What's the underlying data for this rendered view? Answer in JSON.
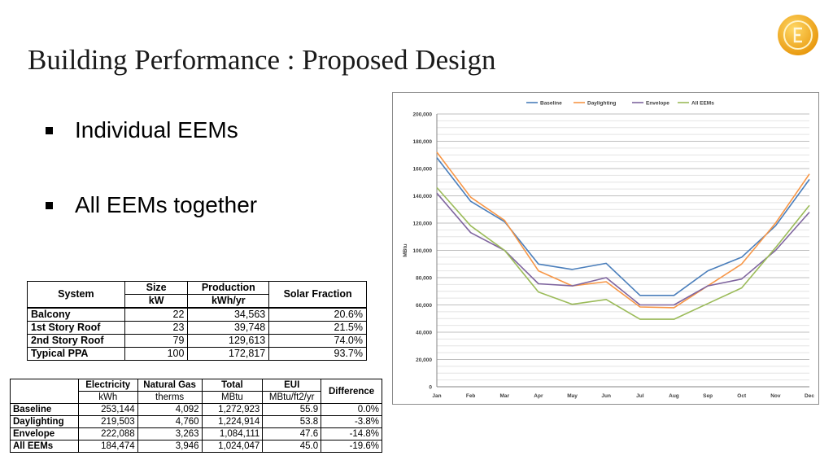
{
  "slide": {
    "title": "Building Performance : Proposed Design",
    "bullets": [
      "Individual EEMs",
      "All EEMs together"
    ],
    "logo_icon": "coin-e-logo"
  },
  "solar_table": {
    "headers": {
      "system": "System",
      "size": "Size",
      "size_unit": "kW",
      "production": "Production",
      "production_unit": "kWh/yr",
      "solar_fraction": "Solar Fraction"
    },
    "rows": [
      {
        "system": "Balcony",
        "size": "22",
        "production": "34,563",
        "fraction": "20.6%"
      },
      {
        "system": "1st Story Roof",
        "size": "23",
        "production": "39,748",
        "fraction": "21.5%"
      },
      {
        "system": "2nd Story Roof",
        "size": "79",
        "production": "129,613",
        "fraction": "74.0%"
      },
      {
        "system": "Typical PPA",
        "size": "100",
        "production": "172,817",
        "fraction": "93.7%"
      }
    ]
  },
  "energy_table": {
    "headers": {
      "electricity": "Electricity",
      "electricity_unit": "kWh",
      "gas": "Natural Gas",
      "gas_unit": "therms",
      "total": "Total",
      "total_unit": "MBtu",
      "eui": "EUI",
      "eui_unit": "MBtu/ft2/yr",
      "difference": "Difference"
    },
    "rows": [
      {
        "name": "Baseline",
        "electricity": "253,144",
        "gas": "4,092",
        "total": "1,272,923",
        "eui": "55.9",
        "difference": "0.0%"
      },
      {
        "name": "Daylighting",
        "electricity": "219,503",
        "gas": "4,760",
        "total": "1,224,914",
        "eui": "53.8",
        "difference": "-3.8%"
      },
      {
        "name": "Envelope",
        "electricity": "222,088",
        "gas": "3,263",
        "total": "1,084,111",
        "eui": "47.6",
        "difference": "-14.8%"
      },
      {
        "name": "All EEMs",
        "electricity": "184,474",
        "gas": "3,946",
        "total": "1,024,047",
        "eui": "45.0",
        "difference": "-19.6%"
      }
    ]
  },
  "chart_data": {
    "type": "line",
    "title": "",
    "xlabel": "",
    "ylabel": "MBtu",
    "categories": [
      "Jan",
      "Feb",
      "Mar",
      "Apr",
      "May",
      "Jun",
      "Jul",
      "Aug",
      "Sep",
      "Oct",
      "Nov",
      "Dec"
    ],
    "ylim": [
      0,
      200000
    ],
    "yticks": [
      0,
      20000,
      40000,
      60000,
      80000,
      100000,
      120000,
      140000,
      160000,
      180000,
      200000
    ],
    "ytick_labels": [
      "0",
      "20,000",
      "40,000",
      "60,000",
      "80,000",
      "100,000",
      "120,000",
      "140,000",
      "160,000",
      "180,000",
      "200,000"
    ],
    "grid": true,
    "legend_position": "top",
    "series": [
      {
        "name": "Baseline",
        "color": "#4a7ebb",
        "values": [
          168000,
          136000,
          121000,
          90000,
          86000,
          90500,
          67000,
          67000,
          85000,
          95000,
          118000,
          152000
        ]
      },
      {
        "name": "Daylighting",
        "color": "#f79646",
        "values": [
          172000,
          139000,
          122000,
          85000,
          74000,
          77000,
          58500,
          58000,
          74000,
          90000,
          120000,
          156000
        ]
      },
      {
        "name": "Envelope",
        "color": "#7f659f",
        "values": [
          142000,
          113000,
          100000,
          75500,
          74000,
          80000,
          60000,
          60000,
          74000,
          79000,
          100000,
          128000
        ]
      },
      {
        "name": "All EEMs",
        "color": "#9bbb59",
        "values": [
          146000,
          118000,
          100000,
          69500,
          60500,
          64000,
          49500,
          49500,
          61000,
          72500,
          102000,
          133000
        ]
      }
    ]
  }
}
